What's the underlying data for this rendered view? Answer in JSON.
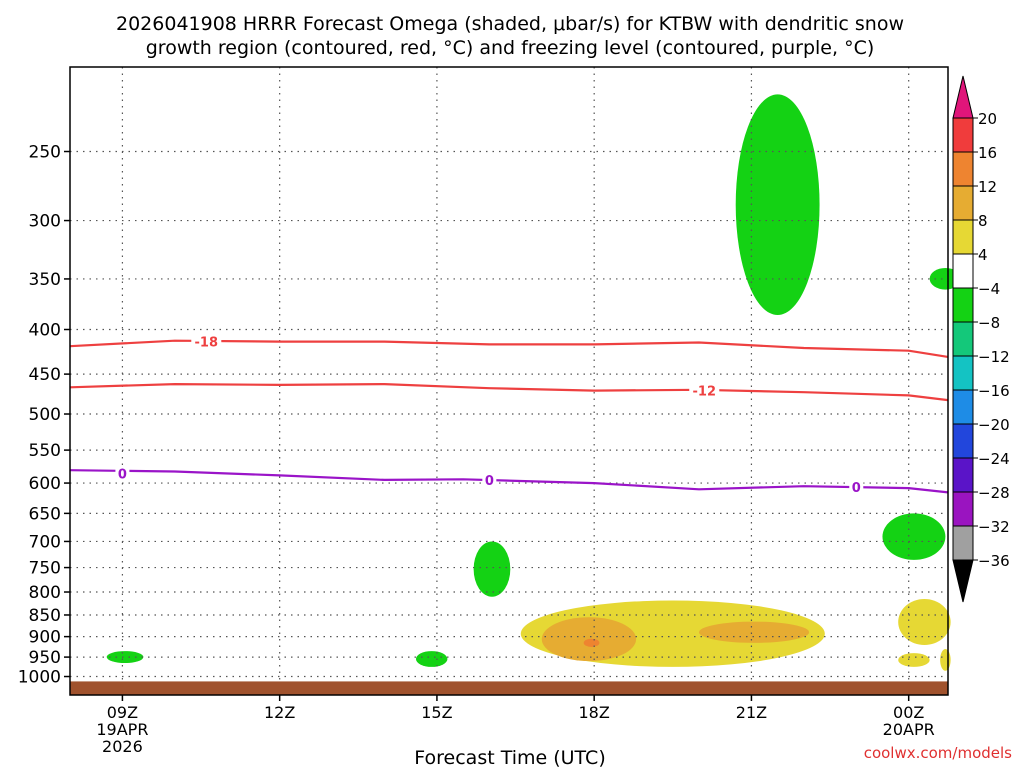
{
  "chart_data": {
    "type": "heatmap",
    "title_line1": "2026041908 HRRR Forecast Omega (shaded, μbar/s) for KTBW with dendritic snow",
    "title_line2": "growth region (contoured, red, °C) and freezing level (contoured, purple, °C)",
    "xlabel": "Forecast Time (UTC)",
    "ylabel": "",
    "credit": "coolwx.com/models",
    "y_axis": {
      "unit": "hPa",
      "scale": "log",
      "reversed": true,
      "range": [
        1050,
        200
      ],
      "ticks": [
        250,
        300,
        350,
        400,
        450,
        500,
        550,
        600,
        650,
        700,
        750,
        800,
        850,
        900,
        950,
        1000
      ]
    },
    "x_axis": {
      "range_hours": [
        8,
        24.75
      ],
      "ticks": [
        {
          "hour": 9,
          "label": "09Z",
          "sub1": "19APR",
          "sub2": "2026"
        },
        {
          "hour": 12,
          "label": "12Z",
          "sub1": "",
          "sub2": ""
        },
        {
          "hour": 15,
          "label": "15Z",
          "sub1": "",
          "sub2": ""
        },
        {
          "hour": 18,
          "label": "18Z",
          "sub1": "",
          "sub2": ""
        },
        {
          "hour": 21,
          "label": "21Z",
          "sub1": "",
          "sub2": ""
        },
        {
          "hour": 24,
          "label": "00Z",
          "sub1": "20APR",
          "sub2": ""
        }
      ]
    },
    "grid": true,
    "legend": "right colorbar",
    "colorbar": {
      "labels": [
        "20",
        "16",
        "12",
        "8",
        "4",
        "−4",
        "−8",
        "−12",
        "−16",
        "−20",
        "−24",
        "−28",
        "−32",
        "−36"
      ],
      "top_arrow_color": "#e0157a",
      "bottom_arrow_color": "#000000",
      "bins": [
        {
          "range": [
            16,
            20
          ],
          "color": "#f03c3c"
        },
        {
          "range": [
            12,
            16
          ],
          "color": "#ee8430"
        },
        {
          "range": [
            8,
            12
          ],
          "color": "#e6ac32"
        },
        {
          "range": [
            4,
            8
          ],
          "color": "#e6d834"
        },
        {
          "range": [
            -4,
            4
          ],
          "color": "#ffffff"
        },
        {
          "range": [
            -8,
            -4
          ],
          "color": "#14d214"
        },
        {
          "range": [
            -12,
            -8
          ],
          "color": "#14c87a"
        },
        {
          "range": [
            -16,
            -12
          ],
          "color": "#14c3c3"
        },
        {
          "range": [
            -20,
            -16
          ],
          "color": "#1e8ce6"
        },
        {
          "range": [
            -24,
            -20
          ],
          "color": "#2246dc"
        },
        {
          "range": [
            -28,
            -24
          ],
          "color": "#5a14c8"
        },
        {
          "range": [
            -32,
            -28
          ],
          "color": "#9a14c0"
        },
        {
          "range": [
            -36,
            -32
          ],
          "color": "#a0a0a0"
        }
      ]
    },
    "contours": [
      {
        "label": "-18",
        "color": "#ee4040",
        "label_at": {
          "hour": 10.6,
          "hpa": 413
        },
        "points": [
          [
            8,
            418
          ],
          [
            10,
            412
          ],
          [
            12,
            413
          ],
          [
            14,
            413
          ],
          [
            16,
            416
          ],
          [
            18,
            416
          ],
          [
            20,
            414
          ],
          [
            22,
            420
          ],
          [
            24,
            423
          ],
          [
            24.75,
            430
          ]
        ]
      },
      {
        "label": "-12",
        "color": "#ee4040",
        "label_at": {
          "hour": 20.1,
          "hpa": 470
        },
        "points": [
          [
            8,
            466
          ],
          [
            10,
            462
          ],
          [
            12,
            463
          ],
          [
            14,
            462
          ],
          [
            16,
            467
          ],
          [
            18,
            470
          ],
          [
            20,
            469
          ],
          [
            22,
            472
          ],
          [
            24,
            476
          ],
          [
            24.75,
            482
          ]
        ]
      },
      {
        "label": "0",
        "color": "#9a14c8",
        "label_at": {
          "hour": 9.0,
          "hpa": 585
        },
        "points": [
          [
            8,
            580
          ],
          [
            10,
            582
          ],
          [
            12,
            588
          ],
          [
            14,
            595
          ],
          [
            15.5,
            594
          ],
          [
            18,
            600
          ],
          [
            20,
            610
          ],
          [
            22,
            605
          ],
          [
            24,
            608
          ],
          [
            24.75,
            615
          ]
        ]
      },
      {
        "label": "0",
        "color": "#9a14c8",
        "label_at": {
          "hour": 16.0,
          "hpa": 595
        },
        "points": []
      },
      {
        "label": "0",
        "color": "#9a14c8",
        "label_at": {
          "hour": 23.0,
          "hpa": 606
        },
        "points": []
      }
    ],
    "shaded_regions": [
      {
        "range": [
          -8,
          -4
        ],
        "color": "#14d214",
        "hours": [
          20.7,
          22.3
        ],
        "hpa": [
          215,
          385
        ]
      },
      {
        "range": [
          -8,
          -4
        ],
        "color": "#14d214",
        "hours": [
          24.4,
          25.0
        ],
        "hpa": [
          340,
          360
        ]
      },
      {
        "range": [
          -8,
          -4
        ],
        "color": "#14d214",
        "hours": [
          23.5,
          24.7
        ],
        "hpa": [
          650,
          735
        ]
      },
      {
        "range": [
          -8,
          -4
        ],
        "color": "#14d214",
        "hours": [
          15.7,
          16.4
        ],
        "hpa": [
          700,
          810
        ]
      },
      {
        "range": [
          -8,
          -4
        ],
        "color": "#14d214",
        "hours": [
          8.7,
          9.4
        ],
        "hpa": [
          935,
          965
        ]
      },
      {
        "range": [
          -8,
          -4
        ],
        "color": "#14d214",
        "hours": [
          14.6,
          15.2
        ],
        "hpa": [
          935,
          975
        ]
      },
      {
        "range": [
          4,
          8
        ],
        "color": "#e6d834",
        "hours": [
          16.6,
          22.4
        ],
        "hpa": [
          818,
          975
        ]
      },
      {
        "range": [
          8,
          12
        ],
        "color": "#e6ac32",
        "hours": [
          17.0,
          18.8
        ],
        "hpa": [
          855,
          960
        ]
      },
      {
        "range": [
          8,
          12
        ],
        "color": "#e6ac32",
        "hours": [
          20.0,
          22.1
        ],
        "hpa": [
          865,
          915
        ]
      },
      {
        "range": [
          12,
          16
        ],
        "color": "#ee8430",
        "hours": [
          17.8,
          18.1
        ],
        "hpa": [
          905,
          925
        ]
      },
      {
        "range": [
          4,
          8
        ],
        "color": "#e6d834",
        "hours": [
          23.8,
          24.8
        ],
        "hpa": [
          815,
          920
        ]
      },
      {
        "range": [
          4,
          8
        ],
        "color": "#e6d834",
        "hours": [
          23.8,
          24.4
        ],
        "hpa": [
          940,
          975
        ]
      },
      {
        "range": [
          4,
          8
        ],
        "color": "#e6d834",
        "hours": [
          24.6,
          24.8
        ],
        "hpa": [
          930,
          985
        ]
      }
    ],
    "terrain": {
      "color": "#a0522d",
      "hpa": 1013
    }
  }
}
